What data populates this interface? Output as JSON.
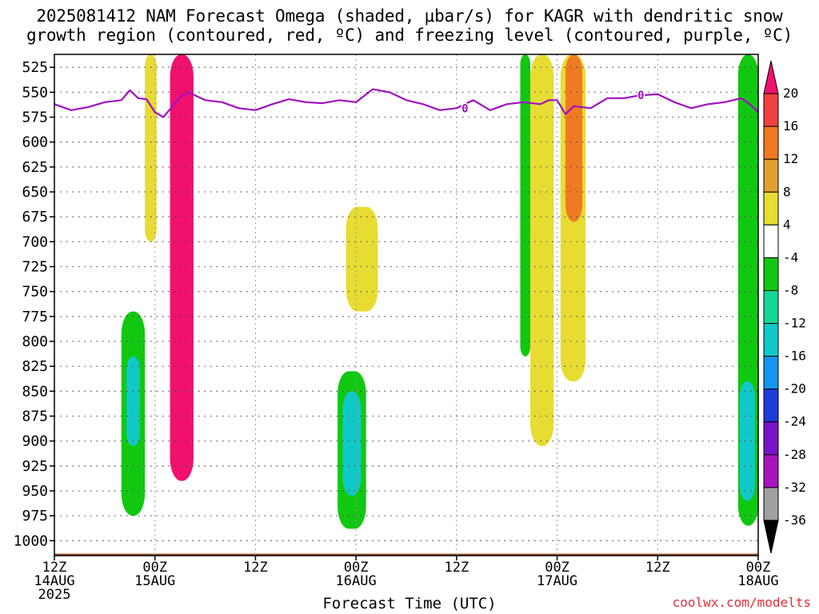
{
  "title_line1": "2025081412 NAM Forecast Omega (shaded, μbar/s) for KAGR with dendritic snow",
  "title_line2": "growth region (contoured, red, ºC) and freezing level (contoured, purple, ºC)",
  "credit": "coolwx.com/modelts",
  "chart_data": {
    "type": "heatmap",
    "title": "2025081412 NAM Forecast Omega (shaded, μbar/s) for KAGR with dendritic snow growth region (contoured, red, ºC) and freezing level (contoured, purple, ºC)",
    "xlabel": "Forecast Time (UTC)",
    "ylabel": "",
    "x_ticks": [
      {
        "hour": 0,
        "line1": "12Z",
        "line2": "14AUG",
        "line3": "2025"
      },
      {
        "hour": 12,
        "line1": "00Z",
        "line2": "15AUG",
        "line3": ""
      },
      {
        "hour": 24,
        "line1": "12Z",
        "line2": "",
        "line3": ""
      },
      {
        "hour": 36,
        "line1": "00Z",
        "line2": "16AUG",
        "line3": ""
      },
      {
        "hour": 48,
        "line1": "12Z",
        "line2": "",
        "line3": ""
      },
      {
        "hour": 60,
        "line1": "00Z",
        "line2": "17AUG",
        "line3": ""
      },
      {
        "hour": 72,
        "line1": "12Z",
        "line2": "",
        "line3": ""
      },
      {
        "hour": 84,
        "line1": "00Z",
        "line2": "18AUG",
        "line3": ""
      }
    ],
    "xlim": [
      0,
      84
    ],
    "y_ticks": [
      525,
      550,
      575,
      600,
      625,
      650,
      675,
      700,
      725,
      750,
      775,
      800,
      825,
      850,
      875,
      900,
      925,
      950,
      975,
      1000
    ],
    "ylim": [
      1015,
      512
    ],
    "y_inverted": true,
    "grid": true,
    "colorbar": {
      "labels": [
        "20",
        "16",
        "12",
        "8",
        "4",
        "-4",
        "-8",
        "-12",
        "-16",
        "-20",
        "-24",
        "-28",
        "-32",
        "-36"
      ],
      "bins": [
        {
          "range": ">20",
          "color": "#f0116e"
        },
        {
          "range": "16 to 20",
          "color": "#f04040"
        },
        {
          "range": "12 to 16",
          "color": "#f07a22"
        },
        {
          "range": "8 to 12",
          "color": "#e0a030"
        },
        {
          "range": "4 to 8",
          "color": "#e8dc32"
        },
        {
          "range": "-4 to 4",
          "color": "#ffffff"
        },
        {
          "range": "-8 to -4",
          "color": "#11c811"
        },
        {
          "range": "-12 to -8",
          "color": "#14d895"
        },
        {
          "range": "-16 to -12",
          "color": "#11c8c8"
        },
        {
          "range": "-20 to -16",
          "color": "#1496f0"
        },
        {
          "range": "-24 to -20",
          "color": "#1c3cdc"
        },
        {
          "range": "-28 to -24",
          "color": "#7814c8"
        },
        {
          "range": "-32 to -28",
          "color": "#a814c0"
        },
        {
          "range": "-36 to -32",
          "color": "#a0a0a0"
        },
        {
          "range": "<-36",
          "color": "#000000"
        }
      ]
    },
    "freezing_level": {
      "label": "0",
      "color": "#a010c0",
      "hours": [
        0,
        2,
        4,
        6,
        8,
        9,
        10,
        11,
        12,
        13,
        14,
        15,
        16,
        18,
        20,
        22,
        24,
        26,
        28,
        30,
        32,
        34,
        36,
        38,
        40,
        42,
        44,
        46,
        48,
        50,
        52,
        54,
        56,
        58,
        59,
        60,
        61,
        62,
        64,
        66,
        68,
        70,
        72,
        74,
        76,
        78,
        80,
        82,
        83,
        84
      ],
      "pressure_hpa": [
        562,
        568,
        565,
        560,
        558,
        548,
        556,
        557,
        570,
        575,
        565,
        555,
        550,
        558,
        560,
        566,
        568,
        562,
        557,
        560,
        561,
        558,
        560,
        547,
        550,
        558,
        562,
        568,
        566,
        558,
        568,
        562,
        560,
        562,
        558,
        558,
        572,
        564,
        566,
        556,
        556,
        553,
        552,
        560,
        566,
        562,
        560,
        556,
        562,
        570
      ]
    },
    "omega_regions": [
      {
        "category": "4 to 8",
        "hour_start": 10.8,
        "hour_end": 12.2,
        "p_top": 512,
        "p_bottom": 700
      },
      {
        "category": ">20",
        "hour_start": 13.8,
        "hour_end": 16.6,
        "p_top": 512,
        "p_bottom": 940
      },
      {
        "category": "-8 to -4",
        "hour_start": 8.0,
        "hour_end": 10.8,
        "p_top": 770,
        "p_bottom": 975
      },
      {
        "category": "-16 to -12",
        "hour_start": 8.6,
        "hour_end": 10.2,
        "p_top": 815,
        "p_bottom": 905
      },
      {
        "category": "-8 to -4",
        "hour_start": 33.8,
        "hour_end": 37.2,
        "p_top": 830,
        "p_bottom": 988
      },
      {
        "category": "-16 to -12",
        "hour_start": 34.4,
        "hour_end": 36.6,
        "p_top": 850,
        "p_bottom": 955
      },
      {
        "category": "4 to 8",
        "hour_start": 34.8,
        "hour_end": 38.6,
        "p_top": 665,
        "p_bottom": 770
      },
      {
        "category": "4 to 8",
        "hour_start": 56.8,
        "hour_end": 59.6,
        "p_top": 512,
        "p_bottom": 905
      },
      {
        "category": "-8 to -4",
        "hour_start": 55.6,
        "hour_end": 56.8,
        "p_top": 512,
        "p_bottom": 815
      },
      {
        "category": "4 to 8",
        "hour_start": 60.4,
        "hour_end": 63.4,
        "p_top": 512,
        "p_bottom": 840
      },
      {
        "category": "12 to 16",
        "hour_start": 61.0,
        "hour_end": 63.0,
        "p_top": 512,
        "p_bottom": 680
      },
      {
        "category": "-8 to -4",
        "hour_start": 81.6,
        "hour_end": 84.0,
        "p_top": 512,
        "p_bottom": 985
      },
      {
        "category": "-16 to -12",
        "hour_start": 81.8,
        "hour_end": 83.6,
        "p_top": 840,
        "p_bottom": 960
      }
    ],
    "terrain": {
      "color": "#a0522d",
      "top_hpa": 1013
    }
  }
}
